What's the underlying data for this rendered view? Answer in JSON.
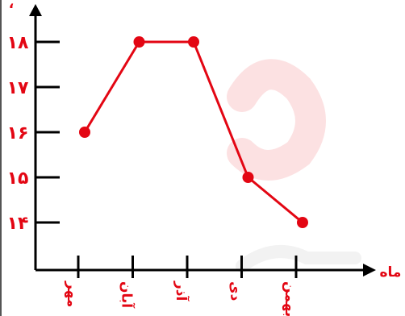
{
  "chart_data": {
    "type": "line",
    "categories": [
      "مهر",
      "آبان",
      "آذر",
      "دی",
      "بهمن"
    ],
    "values": [
      16,
      18,
      18,
      15,
      14
    ],
    "yticks": [
      "۱۴",
      "۱۵",
      "۱۶",
      "۱۷",
      "۱۸"
    ],
    "ytick_values": [
      14,
      15,
      16,
      17,
      18
    ],
    "ylim": [
      13,
      18.6
    ],
    "xlabel": "ماه",
    "ylabel": "",
    "title": "",
    "grid": false,
    "colors": {
      "line": "#e30613",
      "marker": "#e30613",
      "axis": "#000000",
      "text": "#e30613"
    }
  }
}
